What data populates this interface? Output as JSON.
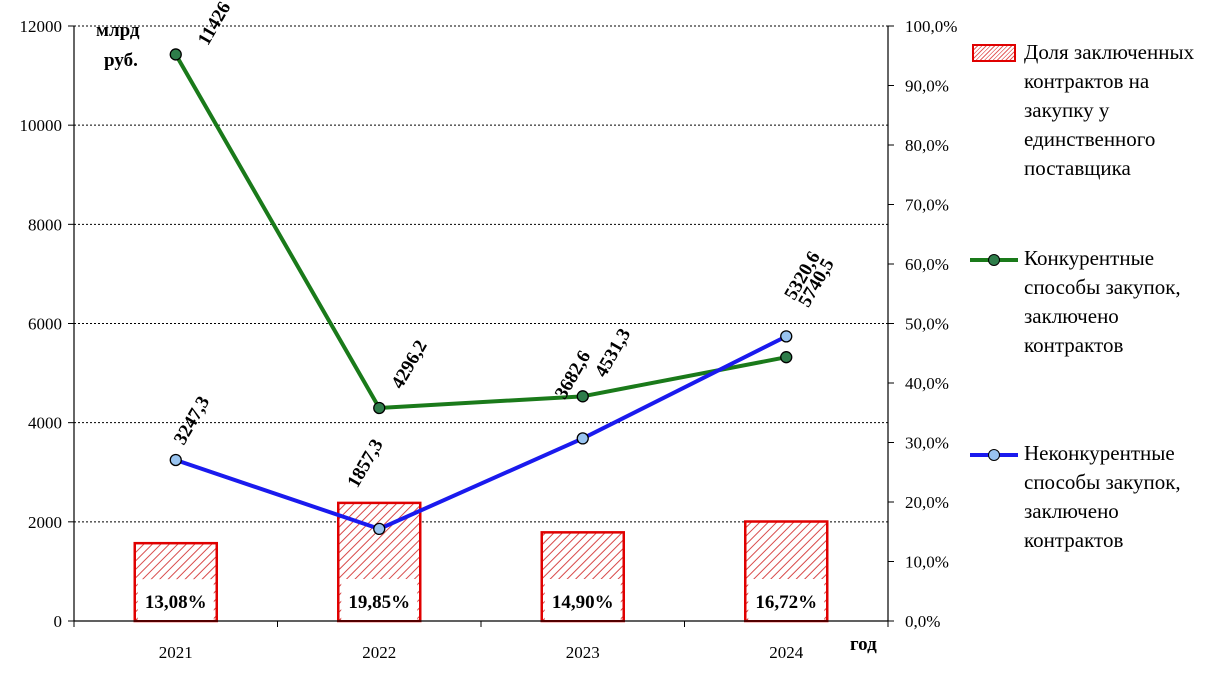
{
  "chart_data": {
    "type": "bar+line",
    "categories": [
      "2021",
      "2022",
      "2023",
      "2024"
    ],
    "xlabel": "год",
    "ylabel": "млрд руб.",
    "ylabel_lines": [
      "млрд",
      "руб."
    ],
    "ylim": [
      0,
      12000
    ],
    "yticks": [
      "0",
      "2000",
      "4000",
      "6000",
      "8000",
      "10000",
      "12000"
    ],
    "y2lim": [
      0,
      100
    ],
    "y2ticks": [
      "0,0%",
      "10,0%",
      "20,0%",
      "30,0%",
      "40,0%",
      "50,0%",
      "60,0%",
      "70,0%",
      "80,0%",
      "90,0%",
      "100,0%"
    ],
    "grid": true,
    "legend_position": "right",
    "bars": {
      "name": "Доля заключенных контрактов на закупку у единственного поставщика",
      "axis": "right",
      "values": [
        13.08,
        19.85,
        14.9,
        16.72
      ],
      "labels": [
        "13,08%",
        "19,85%",
        "14,90%",
        "16,72%"
      ],
      "color": "#e00000"
    },
    "series": [
      {
        "name": "Конкурентные способы закупок, заключено контрактов",
        "axis": "left",
        "values": [
          11426,
          4296.2,
          4531.3,
          5320.6
        ],
        "labels": [
          "11426",
          "4296,2",
          "4531,3",
          "5320,6"
        ],
        "color": "#1a7a1a",
        "marker": "#2e7d4a"
      },
      {
        "name": "Неконкурентные способы закупок, заключено контрактов",
        "axis": "left",
        "values": [
          3247.3,
          1857.3,
          3682.6,
          5740.5
        ],
        "labels": [
          "3247,3",
          "1857,3",
          "3682,6",
          "5740,5"
        ],
        "color": "#1a1aee",
        "marker": "#99c4f0"
      }
    ]
  },
  "legend": [
    {
      "kind": "bar",
      "lines": [
        "Доля заключенных",
        "контрактов на",
        "закупку у",
        "единственного",
        "поставщика"
      ]
    },
    {
      "kind": "line",
      "series": 0,
      "lines": [
        "Конкурентные",
        "способы закупок,",
        "заключено",
        "контрактов"
      ]
    },
    {
      "kind": "line",
      "series": 1,
      "lines": [
        "Неконкурентные",
        "способы закупок,",
        "заключено",
        "контрактов"
      ]
    }
  ]
}
